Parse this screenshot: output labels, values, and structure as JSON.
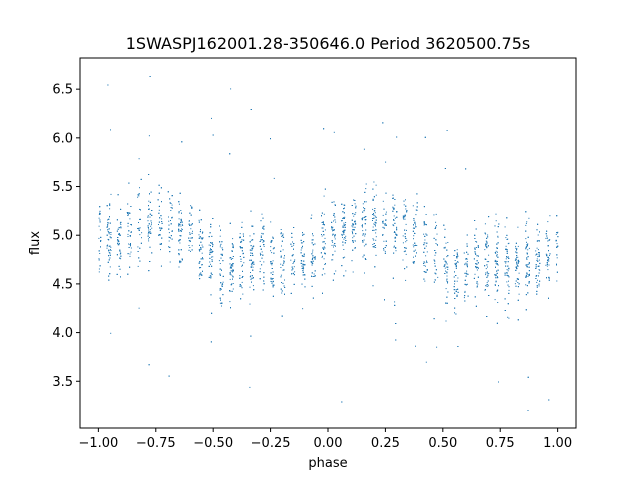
{
  "chart_data": {
    "type": "scatter",
    "title": "1SWASPJ162001.28-350646.0 Period 3620500.75s",
    "xlabel": "phase",
    "ylabel": "flux",
    "xlim": [
      -1.08,
      1.08
    ],
    "ylim": [
      3.02,
      6.82
    ],
    "xticks": [
      -1.0,
      -0.75,
      -0.5,
      -0.25,
      0.0,
      0.25,
      0.5,
      0.75,
      1.0
    ],
    "xtick_labels": [
      "−1.00",
      "−0.75",
      "−0.50",
      "−0.25",
      "0.00",
      "0.25",
      "0.50",
      "0.75",
      "1.00"
    ],
    "yticks": [
      3.5,
      4.0,
      4.5,
      5.0,
      5.5,
      6.0,
      6.5
    ],
    "ytick_labels": [
      "3.5",
      "4.0",
      "4.5",
      "5.0",
      "5.5",
      "6.0",
      "6.5"
    ],
    "grid": false,
    "legend": "none",
    "point_color": "#1f77b4",
    "series": [
      {
        "profile_phase": [
          -1.0,
          -0.9,
          -0.8,
          -0.7,
          -0.6,
          -0.5,
          -0.45,
          -0.4,
          -0.3,
          -0.2,
          -0.1,
          0.0,
          0.1,
          0.2,
          0.3,
          0.4,
          0.5,
          0.55,
          0.6,
          0.7,
          0.8,
          0.9,
          1.0
        ],
        "profile_flux": [
          5.0,
          5.0,
          5.1,
          5.1,
          5.0,
          4.8,
          4.6,
          4.7,
          4.85,
          4.7,
          4.75,
          4.95,
          5.05,
          5.1,
          5.05,
          5.0,
          4.75,
          4.6,
          4.7,
          4.8,
          4.7,
          4.75,
          4.9
        ],
        "core_spread": 0.35,
        "flare_max": 6.65,
        "dip_min": 3.2
      }
    ]
  }
}
